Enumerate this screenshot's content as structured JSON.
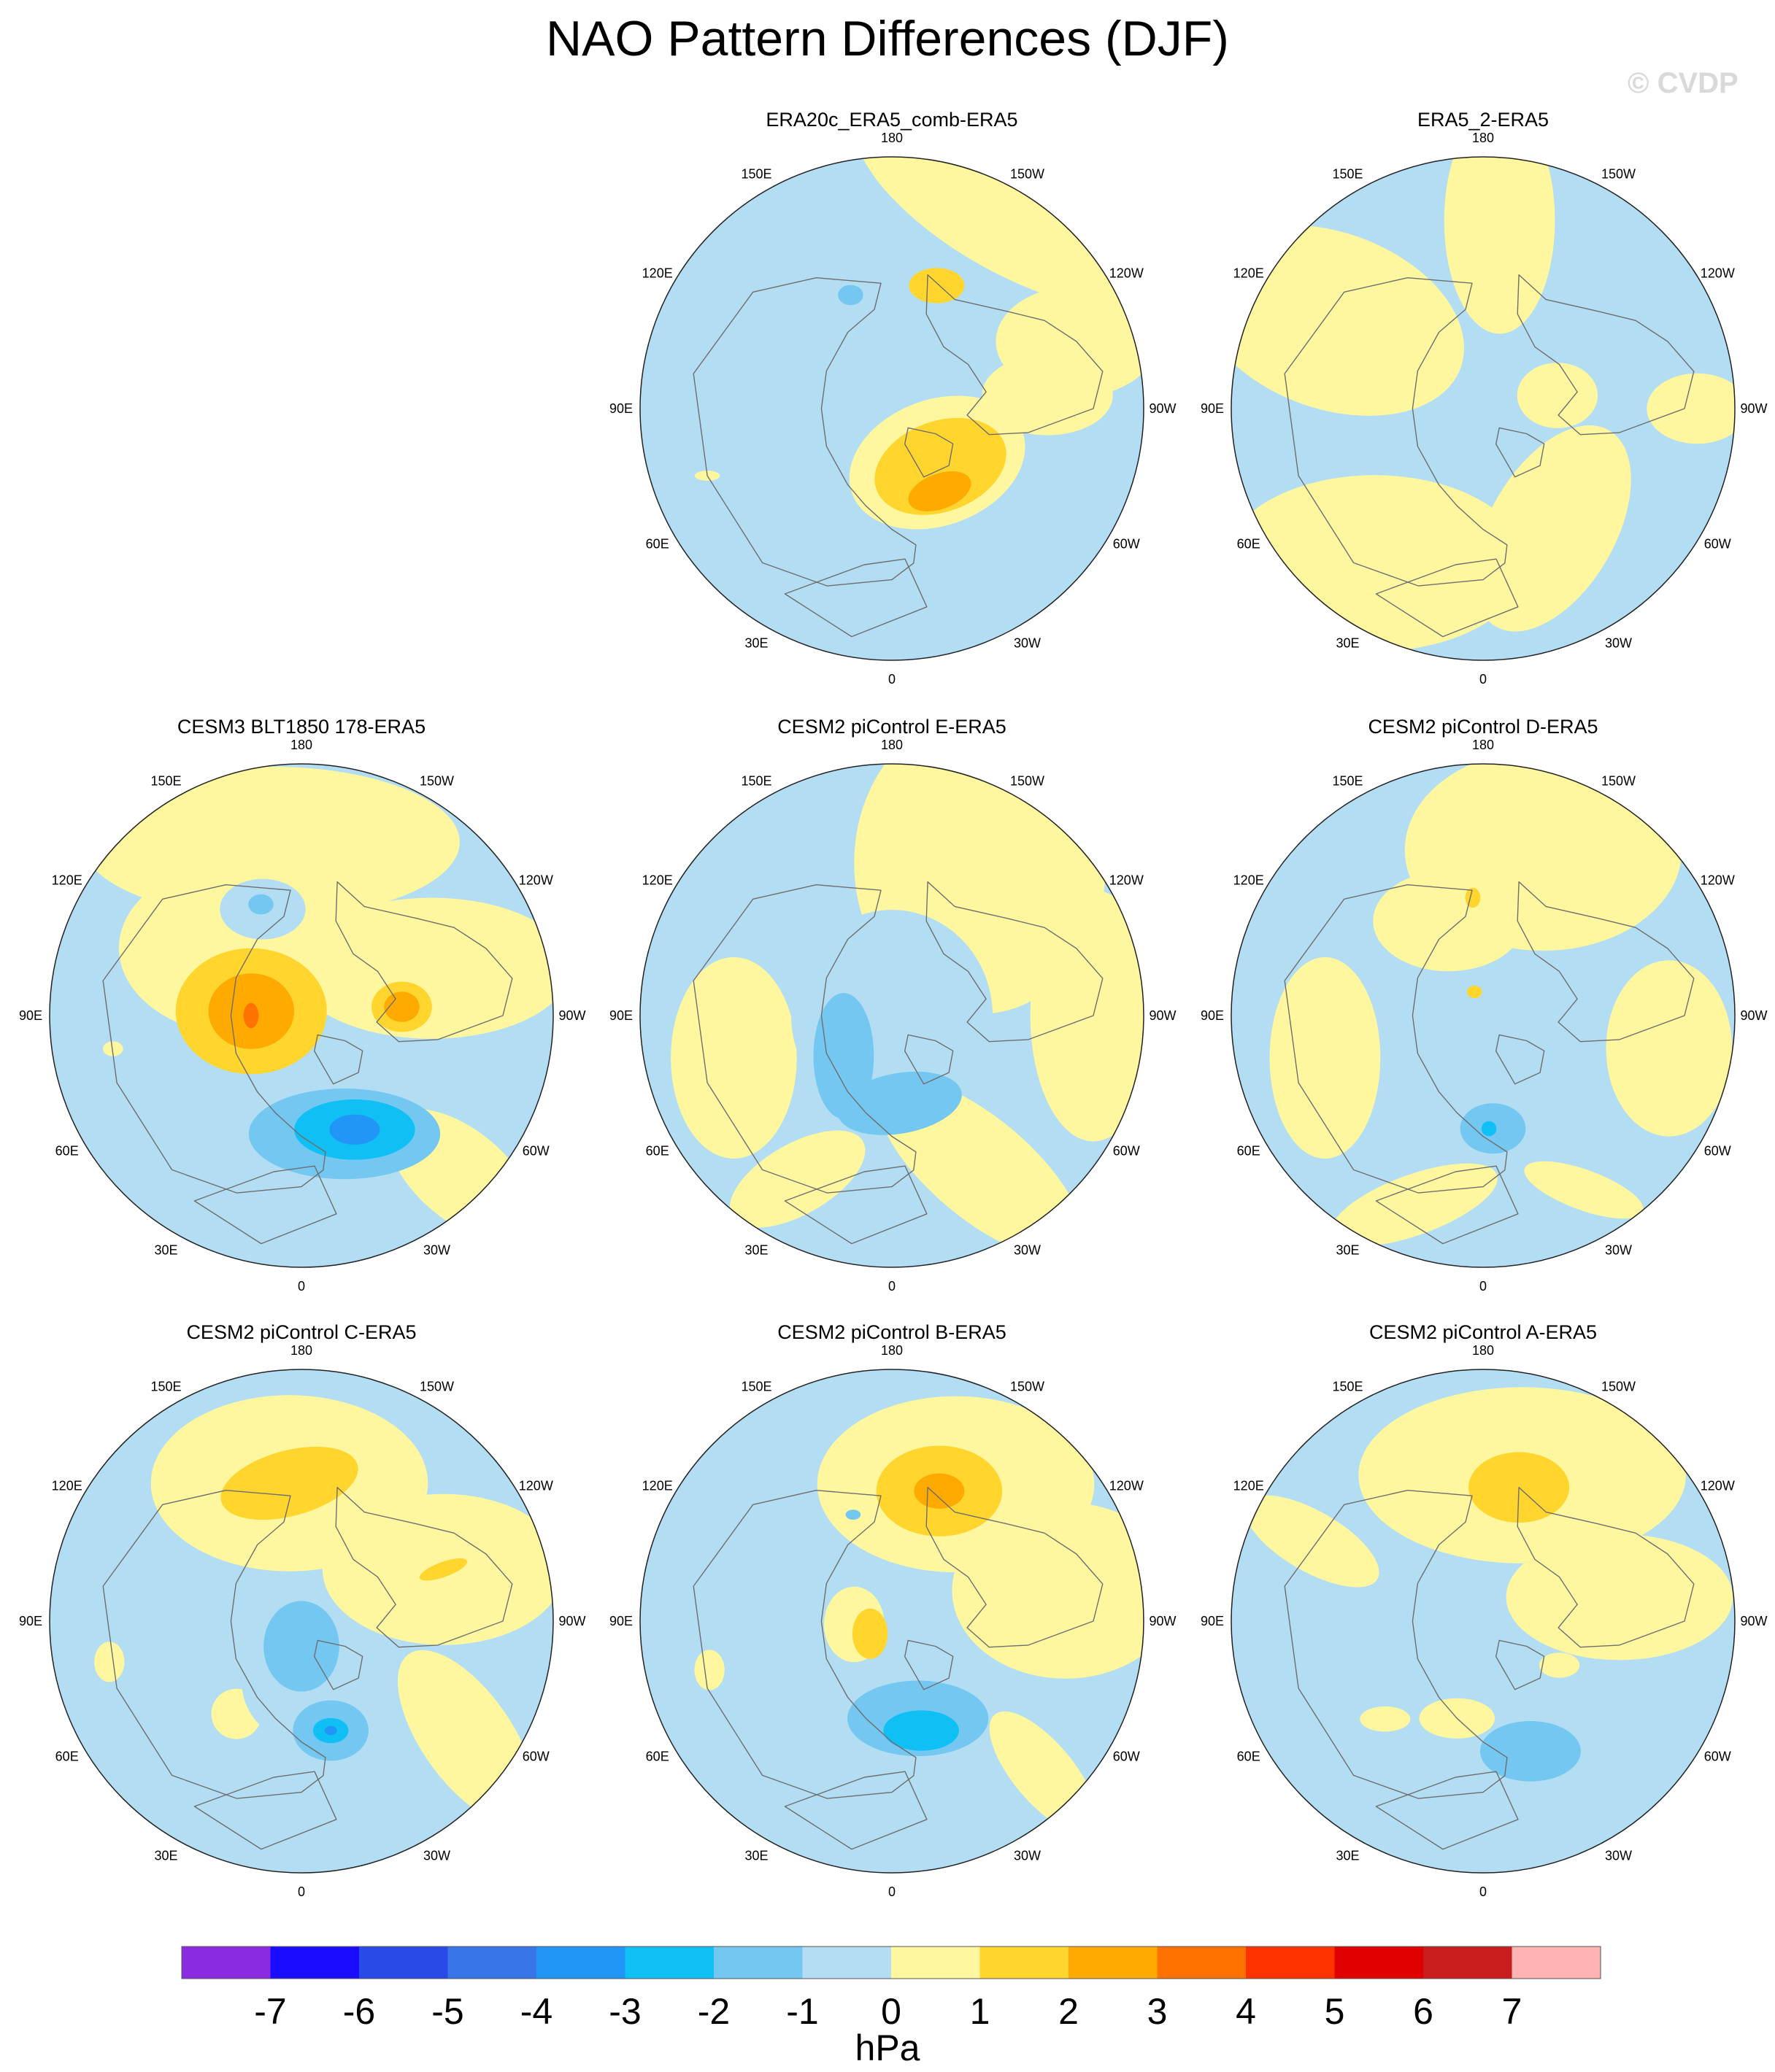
{
  "title": "NAO Pattern Differences (DJF)",
  "watermark": "© CVDP",
  "chart_data": {
    "type": "heatmap",
    "title": "NAO Pattern Differences (DJF)",
    "projection": "polar stereographic, Northern Hemisphere",
    "units": "hPa",
    "longitude_labels": [
      "180",
      "150E",
      "120E",
      "90E",
      "60E",
      "30E",
      "0",
      "30W",
      "60W",
      "90W",
      "120W",
      "150W"
    ],
    "colorbar": {
      "label": "hPa",
      "levels": [
        "-7",
        "-6",
        "-5",
        "-4",
        "-3",
        "-2",
        "-1",
        "0",
        "1",
        "2",
        "3",
        "4",
        "5",
        "6",
        "7"
      ],
      "colors": [
        "#8a2be2",
        "#1a0dff",
        "#2a4ae8",
        "#3775e8",
        "#2196f7",
        "#10c0f5",
        "#74c7f0",
        "#b3ddf2",
        "#fff7a0",
        "#ffd52e",
        "#ffaa00",
        "#ff7200",
        "#ff3300",
        "#e00000",
        "#c91c1c",
        "#ffb3b3"
      ]
    },
    "panels": [
      {
        "id": "p1",
        "title": "ERA20c_ERA5_comb-ERA5",
        "regions": [
          {
            "value": 0.5,
            "lon": -150,
            "rf": 0.95,
            "a": 0.7,
            "b": 0.28,
            "rot": 30
          },
          {
            "value": 0.5,
            "lon": -110,
            "rf": 0.78,
            "a": 0.32,
            "b": 0.22,
            "rot": 0
          },
          {
            "value": 0.5,
            "lon": -40,
            "rf": 0.28,
            "a": 0.36,
            "b": 0.25,
            "rot": -20
          },
          {
            "value": 0.5,
            "lon": -95,
            "rf": 0.62,
            "a": 0.26,
            "b": 0.16,
            "rot": 0
          },
          {
            "value": 1.5,
            "lon": -40,
            "rf": 0.3,
            "a": 0.27,
            "b": 0.18,
            "rot": -20
          },
          {
            "value": 2.5,
            "lon": -30,
            "rf": 0.38,
            "a": 0.13,
            "b": 0.07,
            "rot": -20
          },
          {
            "value": 1.5,
            "lon": -160,
            "rf": 0.52,
            "a": 0.11,
            "b": 0.07,
            "rot": 0
          },
          {
            "value": -1.5,
            "lon": 160,
            "rf": 0.48,
            "a": 0.05,
            "b": 0.04,
            "rot": 0
          },
          {
            "value": 0.5,
            "lon": 70,
            "rf": 0.78,
            "a": 0.05,
            "b": 0.02,
            "rot": 0
          }
        ]
      },
      {
        "id": "p2",
        "title": "ERA5_2-ERA5",
        "regions": [
          {
            "value": 0.5,
            "lon": 120,
            "rf": 0.7,
            "a": 0.55,
            "b": 0.35,
            "rot": 20
          },
          {
            "value": 0.5,
            "lon": 35,
            "rf": 0.75,
            "a": 0.6,
            "b": 0.35,
            "rot": 0
          },
          {
            "value": 0.5,
            "lon": -30,
            "rf": 0.55,
            "a": 0.45,
            "b": 0.25,
            "rot": -60
          },
          {
            "value": 0.5,
            "lon": -175,
            "rf": 0.75,
            "a": 0.22,
            "b": 0.45,
            "rot": 0
          },
          {
            "value": 0.5,
            "lon": -90,
            "rf": 0.85,
            "a": 0.2,
            "b": 0.14,
            "rot": 0
          },
          {
            "value": 0.5,
            "lon": -100,
            "rf": 0.3,
            "a": 0.16,
            "b": 0.13,
            "rot": 0
          }
        ]
      },
      {
        "id": "p3",
        "title": "CESM3 BLT1850 178-ERA5",
        "regions": [
          {
            "value": 0.5,
            "lon": 170,
            "rf": 0.7,
            "a": 0.75,
            "b": 0.3,
            "rot": 0
          },
          {
            "value": 0.5,
            "lon": 140,
            "rf": 0.35,
            "a": 0.5,
            "b": 0.35,
            "rot": 0
          },
          {
            "value": 0.5,
            "lon": -110,
            "rf": 0.55,
            "a": 0.55,
            "b": 0.28,
            "rot": 0
          },
          {
            "value": 0.5,
            "lon": -45,
            "rf": 0.9,
            "a": 0.35,
            "b": 0.18,
            "rot": 40
          },
          {
            "value": -0.5,
            "lon": 160,
            "rf": 0.45,
            "a": 0.17,
            "b": 0.12,
            "rot": 0
          },
          {
            "value": -1.5,
            "lon": 160,
            "rf": 0.47,
            "a": 0.05,
            "b": 0.04,
            "rot": 0
          },
          {
            "value": 1.5,
            "lon": 95,
            "rf": 0.2,
            "a": 0.3,
            "b": 0.25,
            "rot": 0
          },
          {
            "value": 2.5,
            "lon": 95,
            "rf": 0.2,
            "a": 0.17,
            "b": 0.15,
            "rot": 0
          },
          {
            "value": 3.5,
            "lon": 90,
            "rf": 0.2,
            "a": 0.03,
            "b": 0.05,
            "rot": 0
          },
          {
            "value": 1.5,
            "lon": -95,
            "rf": 0.4,
            "a": 0.12,
            "b": 0.1,
            "rot": 0
          },
          {
            "value": 2.5,
            "lon": -95,
            "rf": 0.4,
            "a": 0.07,
            "b": 0.06,
            "rot": 0
          },
          {
            "value": -1.5,
            "lon": -20,
            "rf": 0.5,
            "a": 0.38,
            "b": 0.18,
            "rot": 0
          },
          {
            "value": -2.5,
            "lon": -25,
            "rf": 0.5,
            "a": 0.24,
            "b": 0.12,
            "rot": 0
          },
          {
            "value": -3.5,
            "lon": -25,
            "rf": 0.5,
            "a": 0.1,
            "b": 0.06,
            "rot": 0
          },
          {
            "value": 0.5,
            "lon": 80,
            "rf": 0.76,
            "a": 0.04,
            "b": 0.03,
            "rot": 0
          }
        ]
      },
      {
        "id": "p4",
        "title": "CESM2 piControl E-ERA5",
        "regions": [
          {
            "value": 0.5,
            "lon": -150,
            "rf": 0.7,
            "a": 0.5,
            "b": 0.6,
            "rot": 0
          },
          {
            "value": 0.5,
            "lon": -90,
            "rf": 0.8,
            "a": 0.25,
            "b": 0.5,
            "rot": 0
          },
          {
            "value": 0.5,
            "lon": -30,
            "rf": 0.7,
            "a": 0.5,
            "b": 0.2,
            "rot": 40
          },
          {
            "value": 0.5,
            "lon": 75,
            "rf": 0.65,
            "a": 0.25,
            "b": 0.4,
            "rot": 0
          },
          {
            "value": 0.5,
            "lon": 30,
            "rf": 0.75,
            "a": 0.3,
            "b": 0.14,
            "rot": -30
          },
          {
            "value": -0.5,
            "lon": 0,
            "rf": 0.0,
            "a": 0.4,
            "b": 0.42,
            "rot": 0
          },
          {
            "value": -1.5,
            "lon": 50,
            "rf": 0.25,
            "a": 0.12,
            "b": 0.25,
            "rot": 0
          },
          {
            "value": -1.5,
            "lon": -5,
            "rf": 0.35,
            "a": 0.25,
            "b": 0.12,
            "rot": -10
          }
        ]
      },
      {
        "id": "p5",
        "title": "CESM2 piControl D-ERA5",
        "regions": [
          {
            "value": 0.5,
            "lon": -160,
            "rf": 0.7,
            "a": 0.55,
            "b": 0.4,
            "rot": 0
          },
          {
            "value": 0.5,
            "lon": -80,
            "rf": 0.75,
            "a": 0.25,
            "b": 0.35,
            "rot": 0
          },
          {
            "value": 0.5,
            "lon": 75,
            "rf": 0.65,
            "a": 0.22,
            "b": 0.4,
            "rot": 0
          },
          {
            "value": 0.5,
            "lon": 20,
            "rf": 0.8,
            "a": 0.35,
            "b": 0.12,
            "rot": -20
          },
          {
            "value": 0.5,
            "lon": -30,
            "rf": 0.8,
            "a": 0.25,
            "b": 0.08,
            "rot": 20
          },
          {
            "value": 0.5,
            "lon": 160,
            "rf": 0.4,
            "a": 0.3,
            "b": 0.2,
            "rot": 0
          },
          {
            "value": 1.5,
            "lon": 175,
            "rf": 0.47,
            "a": 0.03,
            "b": 0.04,
            "rot": 0
          },
          {
            "value": 1.5,
            "lon": 160,
            "rf": 0.1,
            "a": 0.03,
            "b": 0.025,
            "rot": 0
          },
          {
            "value": -1.5,
            "lon": -5,
            "rf": 0.45,
            "a": 0.13,
            "b": 0.1,
            "rot": 0
          },
          {
            "value": -2.5,
            "lon": -3,
            "rf": 0.45,
            "a": 0.03,
            "b": 0.03,
            "rot": 0
          }
        ]
      },
      {
        "id": "p6",
        "title": "CESM2 piControl C-ERA5",
        "regions": [
          {
            "value": 0.5,
            "lon": 175,
            "rf": 0.55,
            "a": 0.55,
            "b": 0.35,
            "rot": 0
          },
          {
            "value": 0.5,
            "lon": -110,
            "rf": 0.6,
            "a": 0.48,
            "b": 0.3,
            "rot": 0
          },
          {
            "value": 0.5,
            "lon": -55,
            "rf": 0.8,
            "a": 0.4,
            "b": 0.18,
            "rot": 55
          },
          {
            "value": 0.5,
            "lon": 35,
            "rf": 0.45,
            "a": 0.1,
            "b": 0.1,
            "rot": 0
          },
          {
            "value": 0.5,
            "lon": 78,
            "rf": 0.78,
            "a": 0.06,
            "b": 0.08,
            "rot": 0
          },
          {
            "value": 1.5,
            "lon": 175,
            "rf": 0.55,
            "a": 0.28,
            "b": 0.13,
            "rot": -15
          },
          {
            "value": 1.5,
            "lon": -110,
            "rf": 0.6,
            "a": 0.1,
            "b": 0.03,
            "rot": -20
          },
          {
            "value": -0.5,
            "lon": -10,
            "rf": 0.25,
            "a": 0.28,
            "b": 0.25,
            "rot": 0
          },
          {
            "value": -1.5,
            "lon": 0,
            "rf": 0.1,
            "a": 0.15,
            "b": 0.18,
            "rot": 0
          },
          {
            "value": -1.5,
            "lon": -15,
            "rf": 0.45,
            "a": 0.15,
            "b": 0.12,
            "rot": 0
          },
          {
            "value": -2.5,
            "lon": -15,
            "rf": 0.45,
            "a": 0.07,
            "b": 0.05,
            "rot": 0
          },
          {
            "value": -3.5,
            "lon": -15,
            "rf": 0.45,
            "a": 0.025,
            "b": 0.018,
            "rot": 0
          }
        ]
      },
      {
        "id": "p7",
        "title": "CESM2 piControl B-ERA5",
        "regions": [
          {
            "value": 0.5,
            "lon": -155,
            "rf": 0.6,
            "a": 0.55,
            "b": 0.35,
            "rot": 0
          },
          {
            "value": 0.5,
            "lon": -100,
            "rf": 0.7,
            "a": 0.45,
            "b": 0.35,
            "rot": 0
          },
          {
            "value": 0.5,
            "lon": -45,
            "rf": 0.85,
            "a": 0.3,
            "b": 0.12,
            "rot": 50
          },
          {
            "value": 0.5,
            "lon": 85,
            "rf": 0.15,
            "a": 0.12,
            "b": 0.15,
            "rot": 0
          },
          {
            "value": 0.5,
            "lon": 75,
            "rf": 0.75,
            "a": 0.06,
            "b": 0.08,
            "rot": 0
          },
          {
            "value": 1.5,
            "lon": -160,
            "rf": 0.55,
            "a": 0.25,
            "b": 0.18,
            "rot": 0
          },
          {
            "value": 2.5,
            "lon": -160,
            "rf": 0.55,
            "a": 0.1,
            "b": 0.07,
            "rot": 0
          },
          {
            "value": 1.5,
            "lon": 60,
            "rf": 0.1,
            "a": 0.07,
            "b": 0.1,
            "rot": 0
          },
          {
            "value": -1.5,
            "lon": -15,
            "rf": 0.4,
            "a": 0.28,
            "b": 0.15,
            "rot": 0
          },
          {
            "value": -2.5,
            "lon": -15,
            "rf": 0.45,
            "a": 0.15,
            "b": 0.08,
            "rot": 0
          },
          {
            "value": -1.5,
            "lon": 160,
            "rf": 0.45,
            "a": 0.03,
            "b": 0.02,
            "rot": 0
          }
        ]
      },
      {
        "id": "p8",
        "title": "CESM2 piControl A-ERA5",
        "regions": [
          {
            "value": 0.5,
            "lon": -165,
            "rf": 0.6,
            "a": 0.65,
            "b": 0.35,
            "rot": 0
          },
          {
            "value": 0.5,
            "lon": -100,
            "rf": 0.55,
            "a": 0.45,
            "b": 0.25,
            "rot": 0
          },
          {
            "value": 0.5,
            "lon": 115,
            "rf": 0.75,
            "a": 0.3,
            "b": 0.12,
            "rot": 30
          },
          {
            "value": 0.5,
            "lon": 15,
            "rf": 0.4,
            "a": 0.15,
            "b": 0.08,
            "rot": 0
          },
          {
            "value": 0.5,
            "lon": 45,
            "rf": 0.55,
            "a": 0.1,
            "b": 0.05,
            "rot": 0
          },
          {
            "value": 0.5,
            "lon": -60,
            "rf": 0.35,
            "a": 0.08,
            "b": 0.05,
            "rot": 0
          },
          {
            "value": 1.5,
            "lon": -165,
            "rf": 0.55,
            "a": 0.2,
            "b": 0.14,
            "rot": 0
          },
          {
            "value": -1.5,
            "lon": -20,
            "rf": 0.55,
            "a": 0.2,
            "b": 0.12,
            "rot": 0
          }
        ]
      }
    ]
  }
}
